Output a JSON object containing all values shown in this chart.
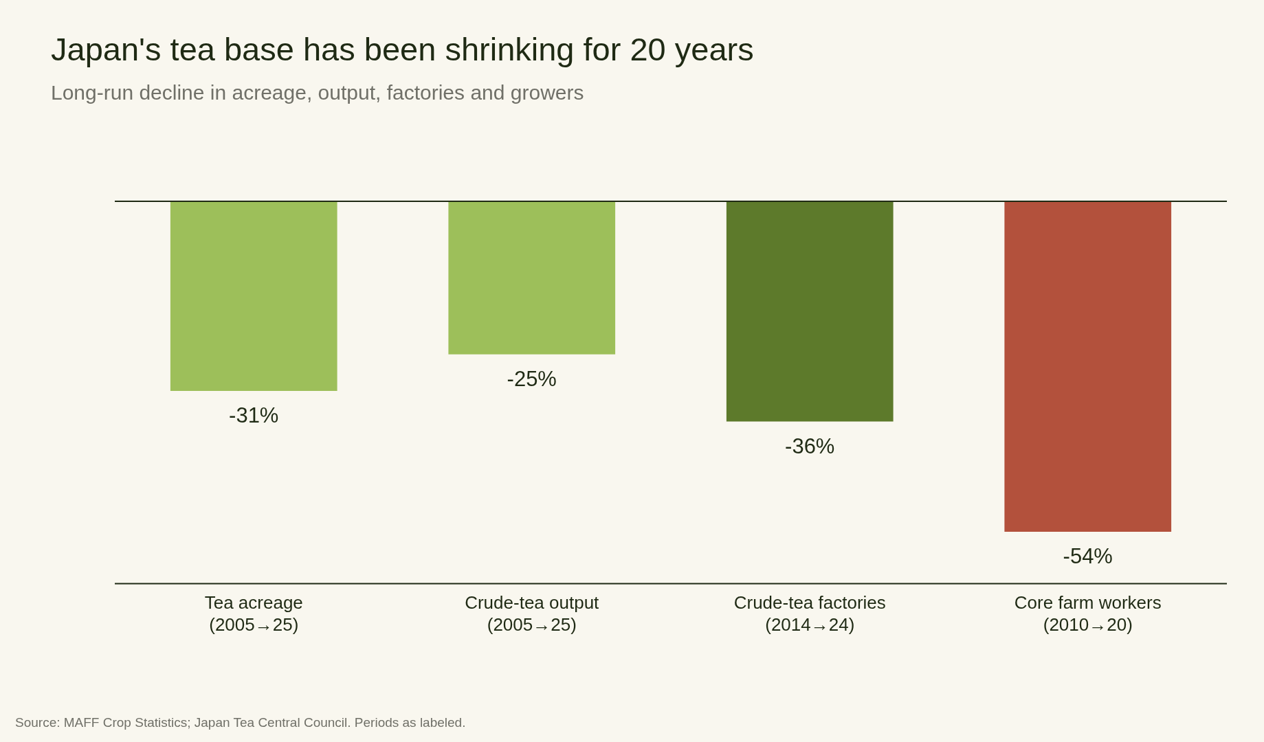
{
  "chart_data": {
    "type": "bar",
    "title": "Japan's tea base has been shrinking for 20 years",
    "subtitle": "Long-run decline in acreage, output, factories and growers",
    "categories": [
      "Tea acreage\n(2005→25)",
      "Crude-tea output\n(2005→25)",
      "Crude-tea factories\n(2014→24)",
      "Core farm workers\n(2010→20)"
    ],
    "values": [
      -31,
      -25,
      -36,
      -54
    ],
    "value_labels": [
      "-31%",
      "-25%",
      "-36%",
      "-54%"
    ],
    "colors": [
      "#9dbf5a",
      "#9dbf5a",
      "#5d7a2b",
      "#b3513c"
    ],
    "ylim": [
      -62.5,
      0
    ],
    "tick_labels": "x",
    "annotations": [
      "Source: MAFF Crop Statistics; Japan Tea Central Council. Periods as labeled."
    ]
  }
}
